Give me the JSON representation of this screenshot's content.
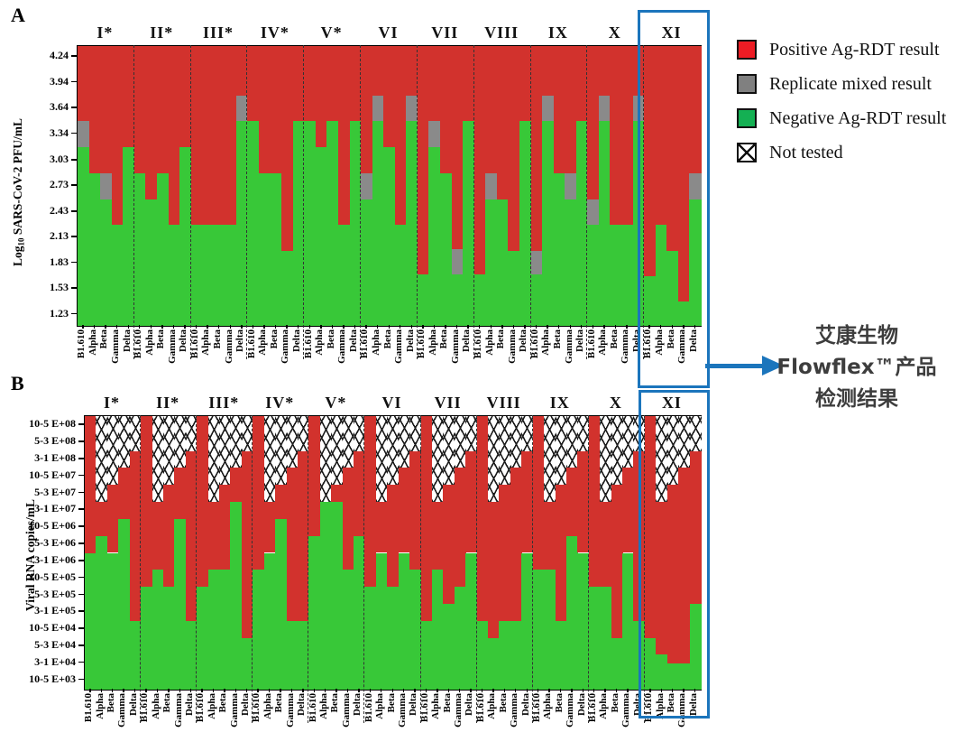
{
  "legend": {
    "items": [
      {
        "label": "Positive Ag-RDT result",
        "type": "positive"
      },
      {
        "label": "Replicate mixed result",
        "type": "mixed"
      },
      {
        "label": "Negative Ag-RDT result",
        "type": "negative"
      },
      {
        "label": "Not tested",
        "type": "not-tested"
      }
    ]
  },
  "annotation": {
    "lines": [
      "艾康生物",
      "Flowflex™产品",
      "检测结果"
    ],
    "arrow_icon": "right-arrow"
  },
  "colors": {
    "positive_bar": "#d2322d",
    "mixed_bar": "#8a8a8a",
    "negative_bar": "#38c838",
    "legend_positive": "#ed1c24",
    "legend_mixed": "#808080",
    "legend_negative": "#14b053",
    "highlight_blue": "#1b75bc"
  },
  "chart_data": [
    {
      "id": "A",
      "type": "bar",
      "stacked": true,
      "y_label_parts": {
        "pre": "Log",
        "sub": "10",
        "post": " SARS-CoV-2 PFU/mL"
      },
      "y_ticks": [
        4.24,
        3.94,
        3.64,
        3.34,
        3.03,
        2.73,
        2.43,
        2.13,
        1.83,
        1.53,
        1.23
      ],
      "y_range": [
        1.1,
        4.37
      ],
      "groups": [
        "I*",
        "II*",
        "III*",
        "IV*",
        "V*",
        "VI",
        "VII",
        "VIII",
        "IX",
        "X",
        "XI"
      ],
      "variants": [
        "B1.610",
        "Alpha",
        "Beta",
        "Gamma",
        "Delta"
      ],
      "series_note": "negative_top = top of green (Negative Ag-RDT) segment; mixed_top = top of gray (Replicate mixed) segment; red (Positive) fills above up to plot top",
      "negative_top": [
        [
          3.19,
          2.88,
          2.58,
          2.28,
          3.19
        ],
        [
          2.88,
          2.58,
          2.88,
          2.28,
          3.19
        ],
        [
          2.28,
          2.28,
          2.28,
          2.28,
          3.49
        ],
        [
          3.49,
          2.88,
          2.88,
          1.98,
          3.49
        ],
        [
          3.49,
          3.19,
          3.49,
          2.28,
          3.49
        ],
        [
          2.58,
          3.49,
          3.19,
          2.28,
          3.49
        ],
        [
          1.7,
          3.19,
          2.88,
          1.7,
          3.49
        ],
        [
          1.7,
          2.58,
          2.58,
          1.98,
          3.49
        ],
        [
          1.7,
          3.49,
          2.88,
          2.58,
          3.49
        ],
        [
          2.28,
          3.49,
          2.28,
          2.28,
          3.49
        ],
        [
          1.68,
          2.28,
          1.98,
          1.38,
          2.58
        ]
      ],
      "mixed_top": [
        [
          3.49,
          null,
          2.88,
          null,
          null
        ],
        [
          null,
          null,
          null,
          null,
          null
        ],
        [
          null,
          null,
          null,
          null,
          3.79
        ],
        [
          null,
          null,
          null,
          null,
          null
        ],
        [
          null,
          null,
          null,
          null,
          null
        ],
        [
          2.88,
          3.79,
          null,
          null,
          3.79
        ],
        [
          null,
          3.49,
          null,
          2.0,
          null
        ],
        [
          null,
          2.88,
          null,
          null,
          null
        ],
        [
          1.98,
          3.79,
          null,
          2.88,
          null
        ],
        [
          2.58,
          3.79,
          null,
          null,
          3.79
        ],
        [
          null,
          null,
          null,
          null,
          2.88
        ]
      ]
    },
    {
      "id": "B",
      "type": "bar",
      "stacked": true,
      "y_label": "Viral RNA copies/mL",
      "y_ticks": [
        "10-5 E+08",
        "5-3 E+08",
        "3-1 E+08",
        "10-5 E+07",
        "5-3 E+07",
        "3-1 E+07",
        "10-5 E+06",
        "5-3 E+06",
        "3-1 E+06",
        "10-5 E+05",
        "5-3 E+05",
        "3-1 E+05",
        "10-5 E+04",
        "5-3 E+04",
        "3-1 E+04",
        "10-5 E+03"
      ],
      "y_scale_note": "values are tick indices: 0 = 10-5 E+03 (bottom) ... 15 = 10-5 E+08 (top)",
      "y_range_idx": [
        -0.55,
        15.55
      ],
      "groups": [
        "I*",
        "II*",
        "III*",
        "IV*",
        "V*",
        "VI",
        "VII",
        "VIII",
        "IX",
        "X",
        "XI"
      ],
      "variants": [
        "B1.610",
        "Alpha",
        "Beta",
        "Gamma",
        "Delta"
      ],
      "series_note": "negative_top_idx = top of green segment; not_tested_bottom_idx = bottom of cross-hatched Not-tested segment (hatch runs to plot top, null = bar tested from very top); red fills between",
      "negative_top_idx": [
        [
          7.5,
          8.5,
          7.5,
          9.5,
          3.5
        ],
        [
          5.5,
          6.5,
          5.5,
          9.5,
          3.5
        ],
        [
          5.5,
          6.5,
          6.5,
          10.5,
          2.5
        ],
        [
          6.5,
          7.5,
          9.5,
          3.5,
          3.5
        ],
        [
          8.5,
          10.5,
          10.5,
          6.5,
          8.5
        ],
        [
          5.5,
          7.5,
          5.5,
          7.5,
          6.5
        ],
        [
          3.5,
          6.5,
          4.5,
          5.5,
          7.5
        ],
        [
          3.5,
          2.5,
          3.5,
          3.5,
          7.5
        ],
        [
          6.5,
          6.5,
          3.5,
          8.5,
          7.5
        ],
        [
          5.5,
          5.5,
          2.5,
          7.5,
          3.5
        ],
        [
          2.5,
          1.5,
          1.0,
          1.0,
          4.5
        ]
      ],
      "not_tested_bottom_idx": [
        [
          null,
          10.5,
          11.5,
          12.5,
          13.5
        ],
        [
          null,
          10.5,
          11.5,
          12.5,
          13.5
        ],
        [
          null,
          10.5,
          11.5,
          12.5,
          13.5
        ],
        [
          null,
          10.5,
          11.5,
          12.5,
          13.5
        ],
        [
          null,
          10.5,
          11.5,
          12.5,
          13.5
        ],
        [
          null,
          10.5,
          11.5,
          12.5,
          13.5
        ],
        [
          null,
          10.5,
          11.5,
          12.5,
          13.5
        ],
        [
          null,
          10.5,
          11.5,
          12.5,
          13.5
        ],
        [
          null,
          10.5,
          11.5,
          12.5,
          13.5
        ],
        [
          null,
          10.5,
          11.5,
          12.5,
          13.5
        ],
        [
          null,
          10.5,
          11.5,
          12.5,
          13.5
        ]
      ]
    }
  ]
}
